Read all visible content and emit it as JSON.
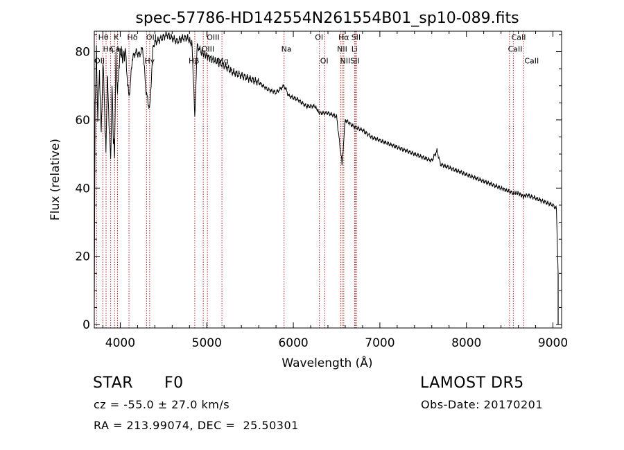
{
  "chart_data": {
    "type": "line",
    "title": "spec-57786-HD142554N261554B01_sp10-089.fits",
    "xlabel": "Wavelength (Å)",
    "ylabel": "Flux (relative)",
    "xlim": [
      3700,
      9100
    ],
    "ylim": [
      -1,
      86
    ],
    "x_ticks": [
      4000,
      5000,
      6000,
      7000,
      8000,
      9000
    ],
    "y_ticks": [
      0,
      20,
      40,
      60,
      80
    ],
    "grid": false,
    "legend": "none",
    "series": [
      {
        "x": [
          3700,
          3710,
          3725,
          3740,
          3760,
          3780,
          3800,
          3820,
          3835,
          3850,
          3870,
          3889,
          3905,
          3920,
          3934,
          3950,
          3968,
          3985,
          4000,
          4030,
          4060,
          4101,
          4140,
          4180,
          4220,
          4260,
          4300,
          4340,
          4380,
          4420,
          4480,
          4540,
          4600,
          4660,
          4720,
          4780,
          4830,
          4861,
          4890,
          4930,
          4980,
          5050,
          5120,
          5200,
          5300,
          5400,
          5500,
          5600,
          5700,
          5800,
          5893,
          5950,
          6050,
          6150,
          6250,
          6300,
          6400,
          6500,
          6563,
          6600,
          6700,
          6800,
          6900,
          7000,
          7100,
          7200,
          7300,
          7400,
          7500,
          7600,
          7660,
          7700,
          7800,
          7900,
          8000,
          8100,
          8200,
          8300,
          8400,
          8498,
          8542,
          8600,
          8662,
          8700,
          8800,
          8900,
          9000,
          9040,
          9060
        ],
        "y": [
          5,
          65,
          80,
          60,
          75,
          55,
          78,
          62,
          50,
          73,
          60,
          48,
          70,
          55,
          50,
          78,
          67,
          76,
          80,
          78,
          80,
          66,
          78,
          80,
          79,
          81,
          68,
          63,
          82,
          83,
          84,
          85,
          84,
          83,
          84,
          84,
          82,
          61,
          82,
          80,
          79,
          78,
          77,
          76,
          74,
          73,
          72,
          71,
          69,
          68,
          70,
          67,
          66,
          64,
          64,
          62,
          62,
          61,
          47,
          60,
          58,
          57,
          55,
          54,
          53,
          52,
          51,
          50,
          49,
          48,
          51,
          47,
          46,
          45,
          44,
          43,
          42,
          41,
          40,
          39,
          38.5,
          38.5,
          37.5,
          38,
          37,
          36,
          35,
          34,
          15
        ]
      }
    ],
    "lines": [
      {
        "name": "OII",
        "wavelength": 3727
      },
      {
        "name": "Hθ",
        "wavelength": 3798
      },
      {
        "name": "Hη",
        "wavelength": 3836
      },
      {
        "name": "Hζ",
        "wavelength": 3889
      },
      {
        "name": "CaK",
        "wavelength": 3934
      },
      {
        "name": "CaH",
        "wavelength": 3968
      },
      {
        "name": "Hδ",
        "wavelength": 4101
      },
      {
        "name": "G",
        "wavelength": 4304
      },
      {
        "name": "Hγ",
        "wavelength": 4340
      },
      {
        "name": "Hβ",
        "wavelength": 4861
      },
      {
        "name": "OIII",
        "wavelength": 4959
      },
      {
        "name": "OIII",
        "wavelength": 5007
      },
      {
        "name": "Mg",
        "wavelength": 5175
      },
      {
        "name": "Na",
        "wavelength": 5893
      },
      {
        "name": "OI",
        "wavelength": 6300
      },
      {
        "name": "OI",
        "wavelength": 6363
      },
      {
        "name": "NII",
        "wavelength": 6548
      },
      {
        "name": "Hα",
        "wavelength": 6563
      },
      {
        "name": "NII",
        "wavelength": 6583
      },
      {
        "name": "Li",
        "wavelength": 6708
      },
      {
        "name": "SII",
        "wavelength": 6716
      },
      {
        "name": "SII",
        "wavelength": 6731
      },
      {
        "name": "CaII",
        "wavelength": 8498
      },
      {
        "name": "CaII",
        "wavelength": 8542
      },
      {
        "name": "CaII",
        "wavelength": 8662
      }
    ],
    "labels": [
      {
        "text": "Hθ",
        "x": 3745,
        "y": 83.5
      },
      {
        "text": "K",
        "x": 3925,
        "y": 83.5
      },
      {
        "text": "Hδ",
        "x": 4080,
        "y": 83.5
      },
      {
        "text": "OII",
        "x": 4300,
        "y": 83.5
      },
      {
        "text": "OIII",
        "x": 5000,
        "y": 83.5
      },
      {
        "text": "OI",
        "x": 6250,
        "y": 83.5
      },
      {
        "text": "Hα",
        "x": 6520,
        "y": 83.5
      },
      {
        "text": "SII",
        "x": 6670,
        "y": 83.5
      },
      {
        "text": "CaII",
        "x": 8520,
        "y": 83.5
      },
      {
        "text": "Hη",
        "x": 3800,
        "y": 80
      },
      {
        "text": "Ca",
        "x": 3880,
        "y": 80
      },
      {
        "text": "H",
        "x": 3960,
        "y": 80
      },
      {
        "text": "OIII",
        "x": 4940,
        "y": 80
      },
      {
        "text": "Na",
        "x": 5860,
        "y": 80
      },
      {
        "text": "NII",
        "x": 6505,
        "y": 80
      },
      {
        "text": "Li",
        "x": 6670,
        "y": 80
      },
      {
        "text": "CaII",
        "x": 8480,
        "y": 80
      },
      {
        "text": "OII",
        "x": 3700,
        "y": 76.5
      },
      {
        "text": "Hγ",
        "x": 4280,
        "y": 76.5
      },
      {
        "text": "Hβ",
        "x": 4790,
        "y": 76.5
      },
      {
        "text": "Mg",
        "x": 5120,
        "y": 76.5
      },
      {
        "text": "OI",
        "x": 6310,
        "y": 76.5
      },
      {
        "text": "NIISII",
        "x": 6540,
        "y": 76.5
      },
      {
        "text": "CaII",
        "x": 8670,
        "y": 76.5
      }
    ]
  },
  "info": {
    "object_class": "STAR",
    "subclass": "F0",
    "survey": "LAMOST DR5",
    "cz": "cz = -55.0 ± 27.0 km/s",
    "obs_date": "Obs-Date: 20170201",
    "coords": "RA = 213.99074, DEC =  25.50301"
  },
  "colors": {
    "spectrum": "#000000",
    "line_markers": "#b22222",
    "background": "#ffffff"
  }
}
